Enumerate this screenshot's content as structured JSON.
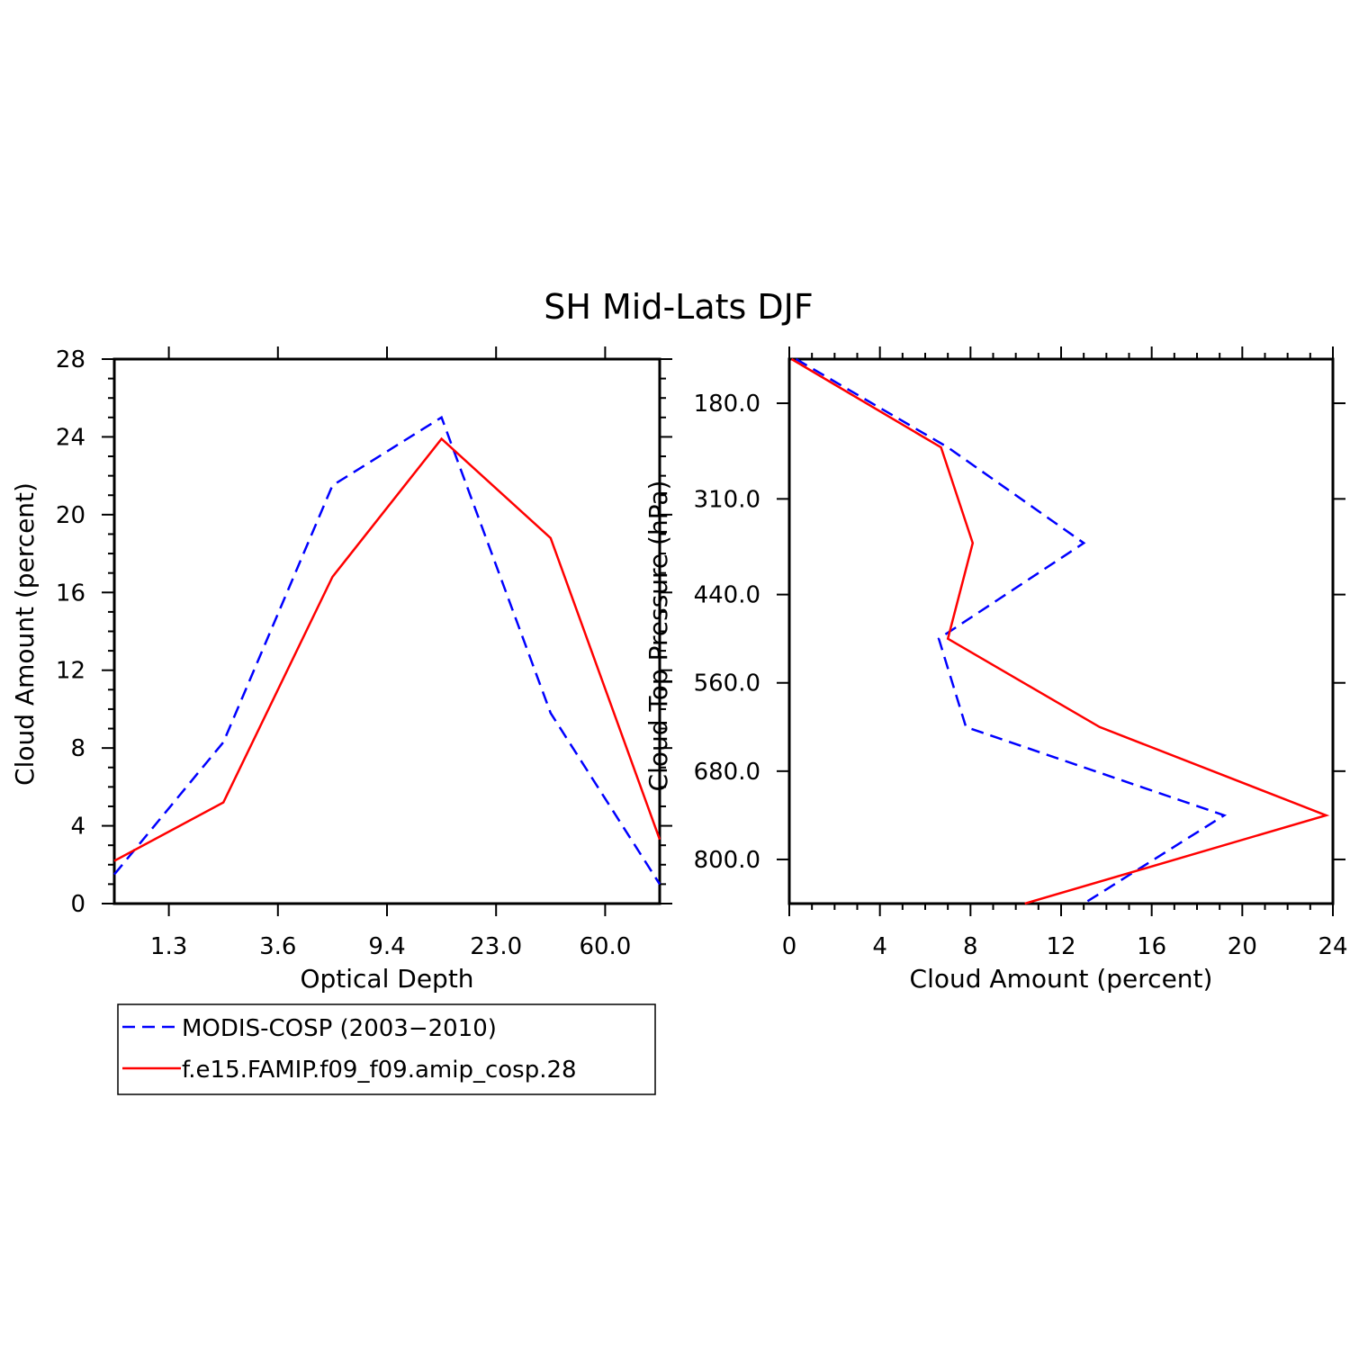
{
  "title": "SH Mid-Lats DJF",
  "colors": {
    "obs": "#0000ff",
    "model": "#ff0000",
    "axis": "#000000"
  },
  "chart_data": [
    {
      "type": "line",
      "xlabel": "Optical Depth",
      "ylabel": "Cloud Amount (percent)",
      "ylim": [
        0,
        28
      ],
      "y_ticks": [
        "0",
        "4",
        "8",
        "12",
        "16",
        "20",
        "24",
        "28"
      ],
      "categories": [
        "",
        "1.3",
        "",
        "3.6",
        "",
        "9.4",
        "",
        "23.0",
        "",
        "60.0",
        ""
      ],
      "x_tick_labels": [
        "1.3",
        "3.6",
        "9.4",
        "23.0",
        "60.0"
      ],
      "series": [
        {
          "name": "MODIS-COSP (2003-2010)",
          "style": "dashed",
          "values": [
            1.5,
            null,
            8.3,
            null,
            21.5,
            null,
            25.0,
            null,
            9.8,
            null,
            1.0
          ]
        },
        {
          "name": "f.e15.FAMIP.f09_f09.amip_cosp.28",
          "style": "solid",
          "values": [
            2.2,
            null,
            5.2,
            null,
            16.8,
            null,
            23.9,
            null,
            18.8,
            null,
            3.3
          ]
        }
      ]
    },
    {
      "type": "line",
      "orientation": "horizontal",
      "xlabel": "Cloud Amount (percent)",
      "ylabel": "Cloud Top Pressure (hPa)",
      "xlim": [
        0,
        24
      ],
      "x_ticks": [
        "0",
        "4",
        "8",
        "12",
        "16",
        "20",
        "24"
      ],
      "y_tick_labels": [
        "180.0",
        "310.0",
        "440.0",
        "560.0",
        "680.0",
        "800.0"
      ],
      "ylim": [
        120,
        860
      ],
      "series": [
        {
          "name": "MODIS-COSP (2003-2010)",
          "style": "dashed",
          "points": [
            [
              0.3,
              120
            ],
            [
              7.0,
              240
            ],
            [
              13.0,
              370
            ],
            [
              6.6,
              500
            ],
            [
              7.8,
              620
            ],
            [
              19.2,
              740
            ],
            [
              13.0,
              860
            ]
          ]
        },
        {
          "name": "f.e15.FAMIP.f09_f09.amip_cosp.28",
          "style": "solid",
          "points": [
            [
              0.1,
              120
            ],
            [
              6.7,
              240
            ],
            [
              8.1,
              370
            ],
            [
              7.0,
              500
            ],
            [
              13.7,
              620
            ],
            [
              23.7,
              740
            ],
            [
              10.4,
              860
            ]
          ]
        }
      ]
    }
  ],
  "legend": [
    {
      "label": "MODIS-COSP (2003−2010)",
      "style": "dashed"
    },
    {
      "label": "f.e15.FAMIP.f09_f09.amip_cosp.28",
      "style": "solid"
    }
  ]
}
